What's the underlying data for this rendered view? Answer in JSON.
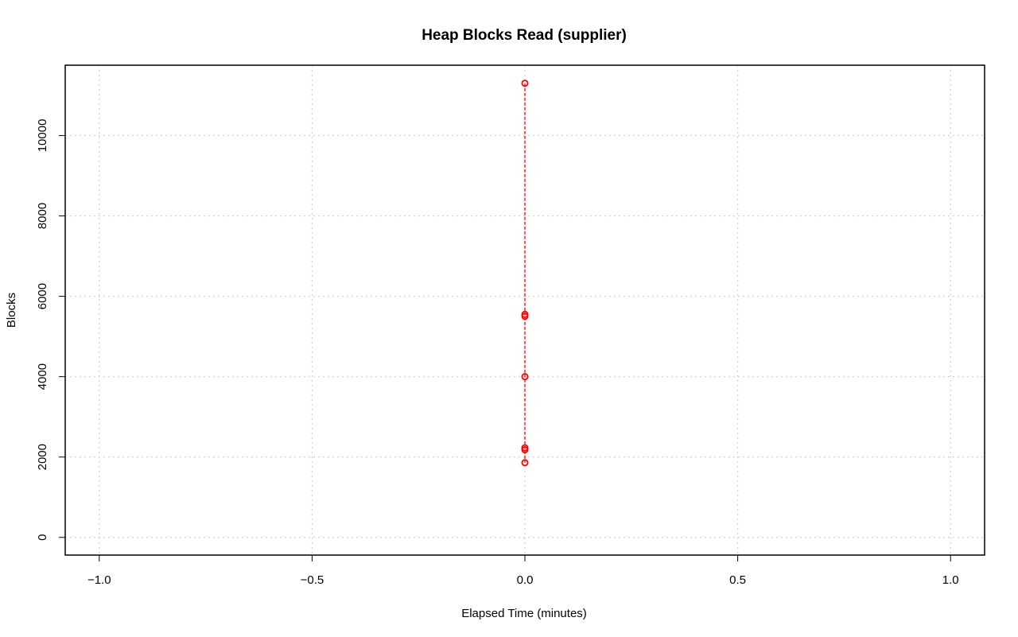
{
  "chart_data": {
    "type": "scatter",
    "title": "Heap Blocks Read (supplier)",
    "xlabel": "Elapsed Time (minutes)",
    "ylabel": "Blocks",
    "xlim": [
      -1.08,
      1.08
    ],
    "ylim": [
      -440,
      11750
    ],
    "x_ticks": [
      -1.0,
      -0.5,
      0.0,
      0.5,
      1.0
    ],
    "x_tick_labels": [
      "−1.0",
      "−0.5",
      "0.0",
      "0.5",
      "1.0"
    ],
    "y_ticks": [
      0,
      2000,
      4000,
      6000,
      8000,
      10000
    ],
    "y_tick_labels": [
      "0",
      "2000",
      "4000",
      "6000",
      "8000",
      "10000"
    ],
    "grid": true,
    "series": [
      {
        "color": "#ff0000",
        "line_style": "dashed",
        "markers": "open-circle",
        "points": [
          {
            "x": 0,
            "y": 11300
          },
          {
            "x": 0,
            "y": 5550
          },
          {
            "x": 0,
            "y": 5500
          },
          {
            "x": 0,
            "y": 4000
          },
          {
            "x": 0,
            "y": 2230
          },
          {
            "x": 0,
            "y": 2180
          },
          {
            "x": 0,
            "y": 1860
          }
        ]
      }
    ]
  }
}
